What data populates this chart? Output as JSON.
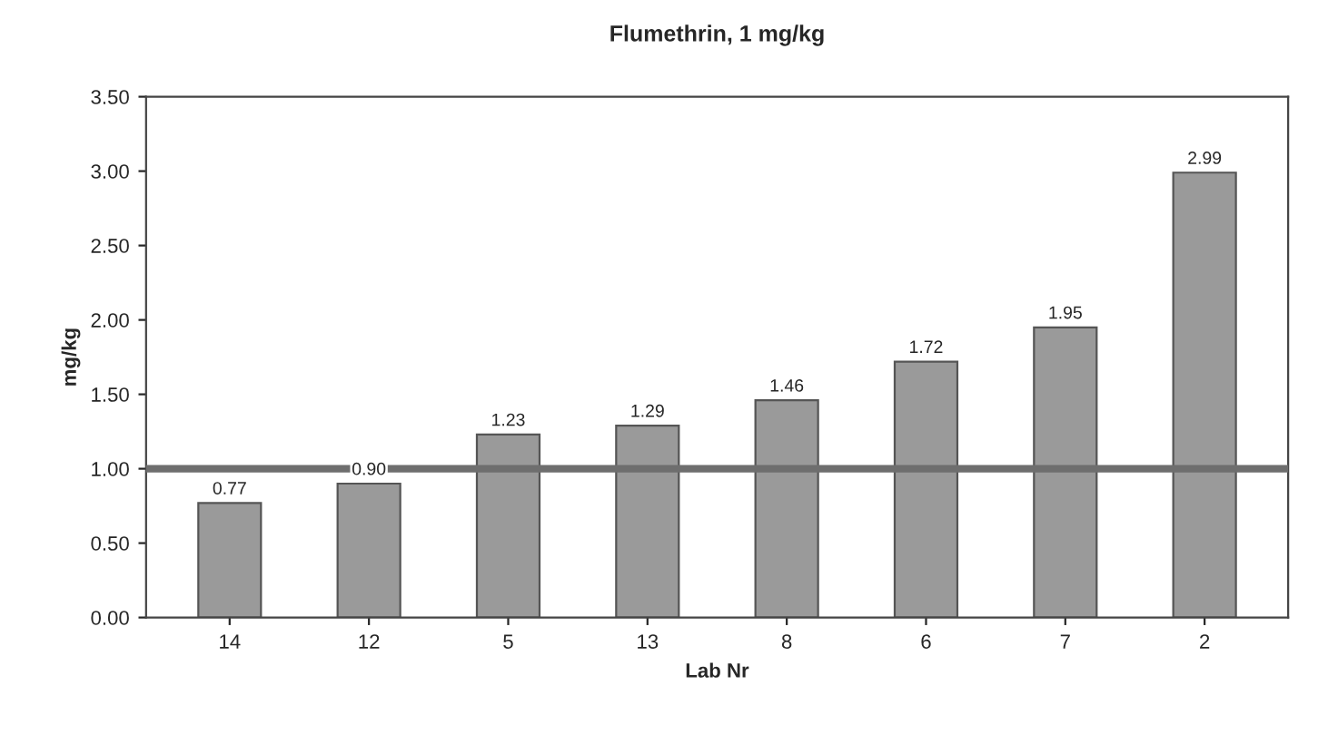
{
  "chart_data": {
    "type": "bar",
    "title": "Flumethrin, 1 mg/kg",
    "xlabel": "Lab Nr",
    "ylabel": "mg/kg",
    "categories": [
      "14",
      "12",
      "5",
      "13",
      "8",
      "6",
      "7",
      "2"
    ],
    "values": [
      0.77,
      0.9,
      1.23,
      1.29,
      1.46,
      1.72,
      1.95,
      2.99
    ],
    "color": "#9a9a9a",
    "value_labels": [
      "0.77",
      "0.90",
      "1.23",
      "1.29",
      "1.46",
      "1.72",
      "1.95",
      "2.99"
    ],
    "ylim": [
      0,
      3.5
    ],
    "yticks": [
      "0.00",
      "0.50",
      "1.00",
      "1.50",
      "2.00",
      "2.50",
      "3.00",
      "3.50"
    ],
    "ref_lines": [
      {
        "axis": "y",
        "value": 1.0,
        "color": "#6e6e6e"
      }
    ],
    "grid": false,
    "legend": false
  }
}
